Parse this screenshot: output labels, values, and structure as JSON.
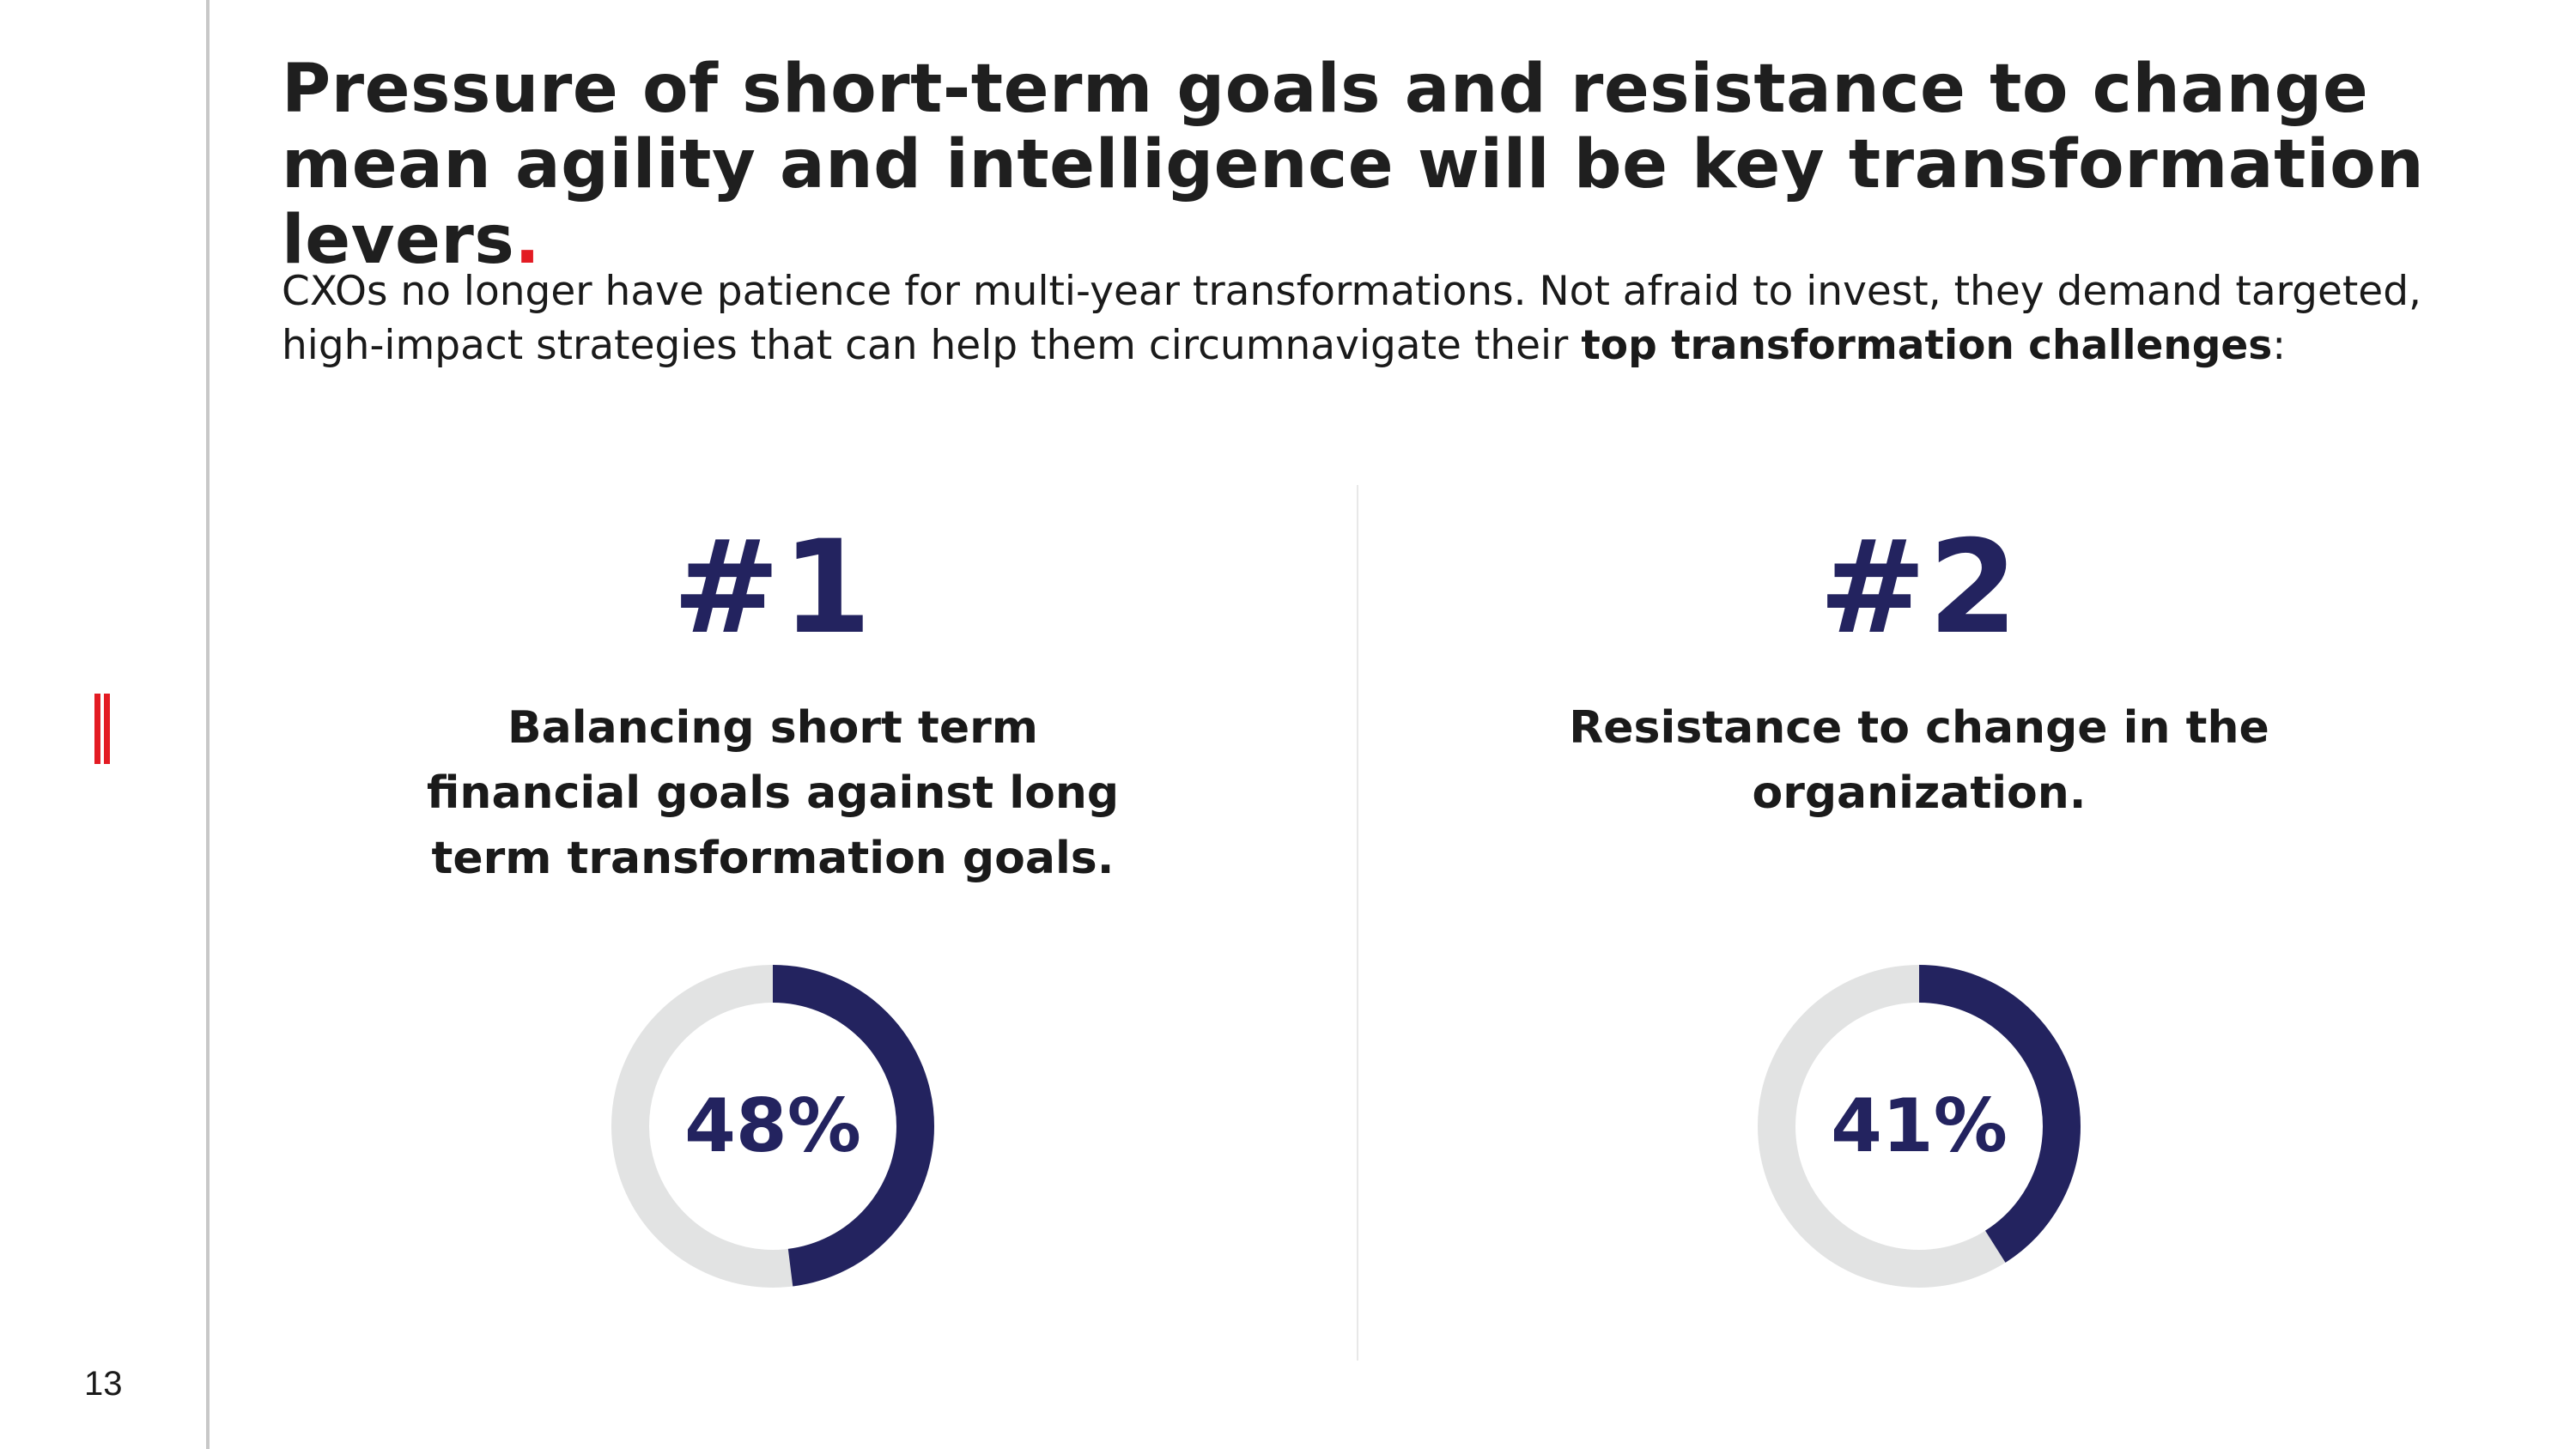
{
  "page": {
    "number": "13",
    "title": "Pressure of short-term goals and resistance to change mean agility and intelligence will be key transformation levers",
    "title_end": ".",
    "intro_text": "CXOs no longer have patience for multi-year transformations. Not afraid to invest, they demand targeted, high-impact strategies that can help them circumnavigate their ",
    "intro_emphasis": "top transformation challenges",
    "intro_end": ":"
  },
  "colors": {
    "accent": "#e31b23",
    "navy": "#23235f",
    "track": "#e2e3e3",
    "rule": "#c8c8c8"
  },
  "challenges": [
    {
      "rank": "#1",
      "text": "Balancing short term financial goals against long term transformation goals.",
      "value_label": "48%"
    },
    {
      "rank": "#2",
      "text": "Resistance to change in the organization.",
      "value_label": "41%"
    }
  ],
  "chart_data": [
    {
      "type": "pie",
      "title": "",
      "categories": [
        "Balancing short term financial goals against long term transformation goals."
      ],
      "values": [
        48
      ],
      "unit": "%",
      "max": 100,
      "style": "donut"
    },
    {
      "type": "pie",
      "title": "",
      "categories": [
        "Resistance to change in the organization."
      ],
      "values": [
        41
      ],
      "unit": "%",
      "max": 100,
      "style": "donut"
    }
  ]
}
